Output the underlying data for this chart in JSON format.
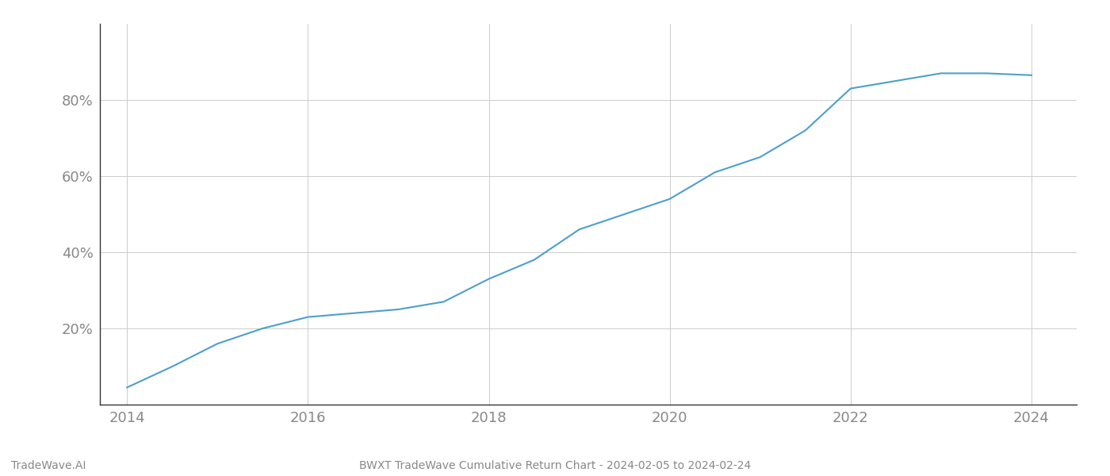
{
  "title": "BWXT TradeWave Cumulative Return Chart - 2024-02-05 to 2024-02-24",
  "watermark": "TradeWave.AI",
  "line_color": "#4d9fcc",
  "background_color": "#ffffff",
  "grid_color": "#cccccc",
  "x_years": [
    2014,
    2014.5,
    2015,
    2015.5,
    2016,
    2016.5,
    2017,
    2017.5,
    2018,
    2018.5,
    2019,
    2019.5,
    2020,
    2020.5,
    2021,
    2021.5,
    2022,
    2022.5,
    2023,
    2023.5,
    2024
  ],
  "y_values": [
    4.5,
    10,
    16,
    20,
    23,
    24,
    25,
    27,
    33,
    38,
    46,
    50,
    54,
    61,
    65,
    72,
    83,
    85,
    87,
    87,
    86.5
  ],
  "xlim": [
    2013.7,
    2024.5
  ],
  "ylim": [
    0,
    100
  ],
  "yticks": [
    20,
    40,
    60,
    80
  ],
  "ytick_labels": [
    "20%",
    "40%",
    "60%",
    "80%"
  ],
  "xticks": [
    2014,
    2016,
    2018,
    2020,
    2022,
    2024
  ],
  "line_width": 1.5,
  "title_fontsize": 10,
  "watermark_fontsize": 10,
  "tick_fontsize": 13,
  "tick_color": "#888888",
  "spine_color": "#333333",
  "axis_color": "#888888"
}
